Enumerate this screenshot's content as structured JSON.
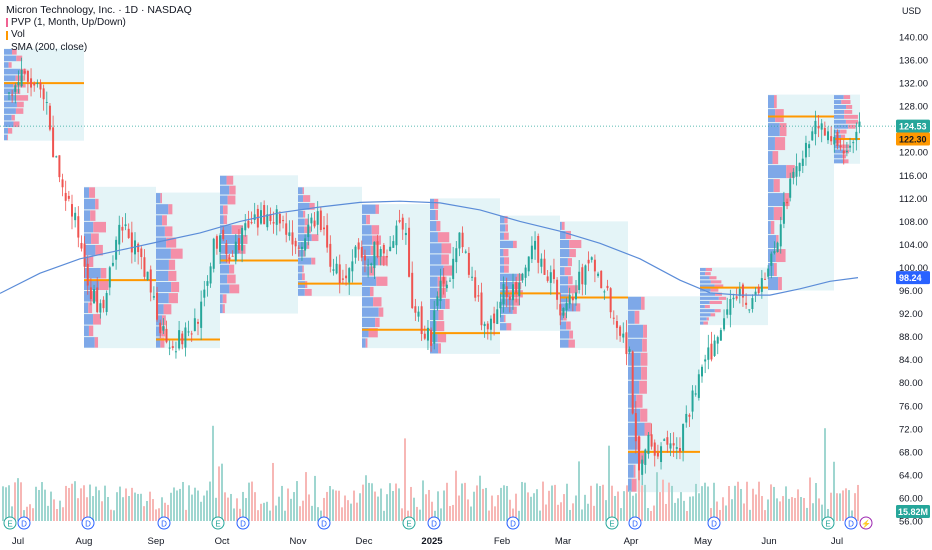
{
  "legend": {
    "title": "Micron Technology, Inc. · 1D · NASDAQ",
    "pvp": "PVP (1, Month, Up/Down)",
    "vol": "Vol",
    "sma": "SMA (200, close)"
  },
  "currency": "USD",
  "colors": {
    "up": "#26a69a",
    "down": "#ef5350",
    "up_vol": "#9fd6d0",
    "down_vol": "#f7b7b5",
    "poc": "#ff9800",
    "sma": "#5b8cd8",
    "profile_bg": "#e4f4f7",
    "profile_up": "#7ea8e8",
    "profile_down": "#f48fa8",
    "last_price": "#26a69a",
    "sma_badge": "#2962ff"
  },
  "chart_data": {
    "type": "candlestick",
    "y_axis": {
      "min": 56,
      "max": 140,
      "ticks": [
        56,
        60,
        64,
        68,
        72,
        76,
        80,
        84,
        88,
        92,
        96,
        100,
        104,
        108,
        112,
        116,
        120,
        124,
        128,
        132,
        136,
        140
      ]
    },
    "x_axis": {
      "labels": [
        "Jul",
        "Aug",
        "Sep",
        "Oct",
        "Nov",
        "Dec",
        "2025",
        "Feb",
        "Mar",
        "Apr",
        "May",
        "Jun",
        "Jul"
      ]
    },
    "price_labels": {
      "last": "124.53",
      "other": "122.30",
      "sma": "98.24",
      "volume": "15.82M"
    },
    "monthly_poc": [
      {
        "month": "Jul",
        "price": 132.0
      },
      {
        "month": "Aug",
        "price": 97.8
      },
      {
        "month": "Sep",
        "price": 87.5
      },
      {
        "month": "Oct",
        "price": 101.2
      },
      {
        "month": "Nov",
        "price": 97.2
      },
      {
        "month": "Dec",
        "price": 89.2
      },
      {
        "month": "Jan",
        "price": 88.6
      },
      {
        "month": "Feb",
        "price": 95.5
      },
      {
        "month": "Mar",
        "price": 94.8
      },
      {
        "month": "Apr",
        "price": 68.0
      },
      {
        "month": "May",
        "price": 96.5
      },
      {
        "month": "Jun",
        "price": 126.2
      },
      {
        "month": "Jul",
        "price": 122.3
      }
    ],
    "sma200_points": [
      [
        0,
        95.5
      ],
      [
        40,
        99
      ],
      [
        80,
        101.5
      ],
      [
        120,
        103
      ],
      [
        160,
        104.5
      ],
      [
        200,
        106
      ],
      [
        240,
        108
      ],
      [
        280,
        109.5
      ],
      [
        320,
        110.5
      ],
      [
        360,
        111.3
      ],
      [
        400,
        111.5
      ],
      [
        440,
        111.2
      ],
      [
        480,
        110
      ],
      [
        520,
        108
      ],
      [
        560,
        106.3
      ],
      [
        600,
        104.2
      ],
      [
        640,
        101.5
      ],
      [
        680,
        97.8
      ],
      [
        710,
        95.6
      ],
      [
        740,
        95.2
      ],
      [
        770,
        95.2
      ],
      [
        800,
        96.3
      ],
      [
        830,
        97.6
      ],
      [
        858,
        98.24
      ]
    ],
    "close_path": [
      [
        8,
        130
      ],
      [
        20,
        133
      ],
      [
        35,
        131
      ],
      [
        45,
        128
      ],
      [
        50,
        121
      ],
      [
        60,
        115
      ],
      [
        70,
        110
      ],
      [
        80,
        104
      ],
      [
        85,
        100
      ],
      [
        92,
        95
      ],
      [
        100,
        92
      ],
      [
        110,
        99
      ],
      [
        120,
        107
      ],
      [
        130,
        105
      ],
      [
        140,
        100
      ],
      [
        150,
        96
      ],
      [
        158,
        91
      ],
      [
        165,
        88
      ],
      [
        175,
        87
      ],
      [
        190,
        89
      ],
      [
        205,
        95
      ],
      [
        212,
        105
      ],
      [
        220,
        104
      ],
      [
        230,
        101
      ],
      [
        240,
        106
      ],
      [
        250,
        107
      ],
      [
        260,
        108
      ],
      [
        270,
        110
      ],
      [
        280,
        108
      ],
      [
        290,
        106
      ],
      [
        300,
        101
      ],
      [
        310,
        108
      ],
      [
        318,
        109
      ],
      [
        326,
        103
      ],
      [
        336,
        99
      ],
      [
        346,
        97
      ],
      [
        356,
        103
      ],
      [
        366,
        100
      ],
      [
        376,
        104
      ],
      [
        386,
        101
      ],
      [
        396,
        106
      ],
      [
        404,
        106
      ],
      [
        410,
        95
      ],
      [
        420,
        90
      ],
      [
        430,
        88
      ],
      [
        440,
        97
      ],
      [
        450,
        100
      ],
      [
        460,
        105
      ],
      [
        470,
        98
      ],
      [
        480,
        92
      ],
      [
        488,
        89
      ],
      [
        496,
        91
      ],
      [
        504,
        97
      ],
      [
        514,
        95
      ],
      [
        524,
        98
      ],
      [
        534,
        104
      ],
      [
        544,
        100
      ],
      [
        554,
        96
      ],
      [
        562,
        92
      ],
      [
        572,
        95
      ],
      [
        582,
        99
      ],
      [
        592,
        101
      ],
      [
        602,
        97
      ],
      [
        612,
        93
      ],
      [
        620,
        88
      ],
      [
        628,
        86
      ],
      [
        634,
        70
      ],
      [
        640,
        65
      ],
      [
        646,
        72
      ],
      [
        652,
        69
      ],
      [
        660,
        68
      ],
      [
        668,
        70
      ],
      [
        676,
        68
      ],
      [
        684,
        72
      ],
      [
        690,
        76
      ],
      [
        696,
        80
      ],
      [
        704,
        83
      ],
      [
        712,
        86
      ],
      [
        718,
        88
      ],
      [
        724,
        93
      ],
      [
        730,
        96
      ],
      [
        738,
        96
      ],
      [
        746,
        94
      ],
      [
        754,
        95
      ],
      [
        762,
        97
      ],
      [
        770,
        101
      ],
      [
        776,
        105
      ],
      [
        782,
        110
      ],
      [
        790,
        114
      ],
      [
        798,
        118
      ],
      [
        806,
        122
      ],
      [
        814,
        125
      ],
      [
        822,
        125
      ],
      [
        828,
        122
      ],
      [
        836,
        120
      ],
      [
        844,
        121
      ],
      [
        852,
        123
      ],
      [
        858,
        124.53
      ]
    ],
    "event_markers": [
      {
        "x": 4,
        "label": "E"
      },
      {
        "x": 18,
        "label": "D"
      },
      {
        "x": 82,
        "label": "D"
      },
      {
        "x": 158,
        "label": "D"
      },
      {
        "x": 212,
        "label": "E"
      },
      {
        "x": 237,
        "label": "D"
      },
      {
        "x": 318,
        "label": "D"
      },
      {
        "x": 403,
        "label": "E"
      },
      {
        "x": 428,
        "label": "D"
      },
      {
        "x": 507,
        "label": "D"
      },
      {
        "x": 606,
        "label": "E"
      },
      {
        "x": 629,
        "label": "D"
      },
      {
        "x": 708,
        "label": "D"
      },
      {
        "x": 822,
        "label": "E"
      },
      {
        "x": 845,
        "label": "D"
      },
      {
        "x": 860,
        "label": "⚡"
      }
    ]
  }
}
